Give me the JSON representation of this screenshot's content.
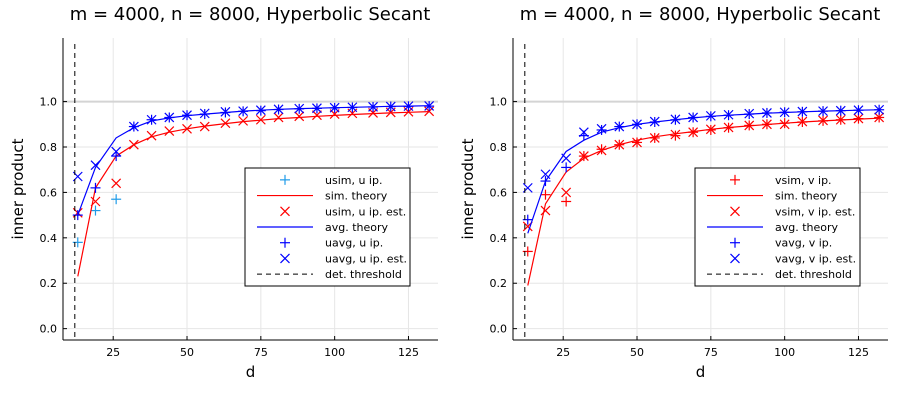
{
  "chart_data": [
    {
      "type": "scatter",
      "title": "m = 4000, n = 8000, Hyperbolic Secant",
      "xlabel": "d",
      "ylabel": "inner product",
      "xlim": [
        8,
        135
      ],
      "ylim": [
        -0.05,
        1.28
      ],
      "xticks": [
        25,
        50,
        75,
        100,
        125
      ],
      "yticks": [
        0.0,
        0.2,
        0.4,
        0.6,
        0.8,
        1.0
      ],
      "xtick_labels": [
        "25",
        "50",
        "75",
        "100",
        "125"
      ],
      "ytick_labels": [
        "0.0",
        "0.2",
        "0.4",
        "0.6",
        "0.8",
        "1.0"
      ],
      "reference_line_y": 1.0,
      "legend_position": "right",
      "series": [
        {
          "name": "usim, u ip.",
          "kind": "marker-plus",
          "color": "#1f9be8",
          "x": [
            13,
            19,
            26
          ],
          "y": [
            0.38,
            0.52,
            0.57
          ]
        },
        {
          "name": "sim. theory",
          "kind": "line",
          "color": "#ff0000",
          "x": [
            13,
            19,
            26,
            32,
            38,
            44,
            50,
            56,
            63,
            69,
            75,
            81,
            88,
            94,
            100,
            106,
            113,
            119,
            125,
            132
          ],
          "y": [
            0.23,
            0.62,
            0.76,
            0.81,
            0.845,
            0.865,
            0.88,
            0.892,
            0.903,
            0.912,
            0.918,
            0.925,
            0.93,
            0.935,
            0.939,
            0.943,
            0.947,
            0.95,
            0.953,
            0.956
          ]
        },
        {
          "name": "usim, u ip. est.",
          "kind": "marker-x",
          "color": "#ff0000",
          "x": [
            13,
            19,
            26,
            32,
            38,
            44,
            50,
            56,
            63,
            69,
            75,
            81,
            88,
            94,
            100,
            106,
            113,
            119,
            125,
            132
          ],
          "y": [
            0.51,
            0.56,
            0.64,
            0.81,
            0.85,
            0.87,
            0.88,
            0.89,
            0.905,
            0.915,
            0.92,
            0.93,
            0.935,
            0.94,
            0.945,
            0.948,
            0.95,
            0.952,
            0.955,
            0.957
          ]
        },
        {
          "name": "avg. theory",
          "kind": "line",
          "color": "#0000ff",
          "x": [
            13,
            19,
            26,
            32,
            38,
            44,
            50,
            56,
            63,
            69,
            75,
            81,
            88,
            94,
            100,
            106,
            113,
            119,
            125,
            132
          ],
          "y": [
            0.5,
            0.71,
            0.84,
            0.885,
            0.915,
            0.928,
            0.938,
            0.945,
            0.952,
            0.958,
            0.962,
            0.966,
            0.969,
            0.971,
            0.973,
            0.975,
            0.977,
            0.979,
            0.98,
            0.982
          ]
        },
        {
          "name": "uavg, u ip.",
          "kind": "marker-plus",
          "color": "#0000ff",
          "x": [
            13,
            19,
            26,
            32,
            38,
            44,
            50,
            56,
            63,
            69,
            75,
            81,
            88,
            94,
            100,
            106,
            113,
            119,
            125,
            132
          ],
          "y": [
            0.5,
            0.62,
            0.76,
            0.89,
            0.92,
            0.93,
            0.94,
            0.945,
            0.952,
            0.957,
            0.96,
            0.965,
            0.968,
            0.97,
            0.972,
            0.974,
            0.976,
            0.978,
            0.979,
            0.98
          ]
        },
        {
          "name": "uavg, u ip. est.",
          "kind": "marker-x",
          "color": "#0000ff",
          "x": [
            13,
            19,
            26,
            32,
            38,
            44,
            50,
            56,
            63,
            69,
            75,
            81,
            88,
            94,
            100,
            106,
            113,
            119,
            125,
            132
          ],
          "y": [
            0.67,
            0.72,
            0.78,
            0.89,
            0.92,
            0.93,
            0.94,
            0.948,
            0.955,
            0.958,
            0.962,
            0.966,
            0.969,
            0.971,
            0.973,
            0.975,
            0.977,
            0.978,
            0.98,
            0.981
          ]
        },
        {
          "name": "det. threshold",
          "kind": "vline-dashed",
          "color": "#000000",
          "x_value": 12
        }
      ]
    },
    {
      "type": "scatter",
      "title": "m = 4000, n = 8000, Hyperbolic Secant",
      "xlabel": "d",
      "ylabel": "inner product",
      "xlim": [
        8,
        135
      ],
      "ylim": [
        -0.05,
        1.28
      ],
      "xticks": [
        25,
        50,
        75,
        100,
        125
      ],
      "yticks": [
        0.0,
        0.2,
        0.4,
        0.6,
        0.8,
        1.0
      ],
      "xtick_labels": [
        "25",
        "50",
        "75",
        "100",
        "125"
      ],
      "ytick_labels": [
        "0.0",
        "0.2",
        "0.4",
        "0.6",
        "0.8",
        "1.0"
      ],
      "reference_line_y": 1.0,
      "legend_position": "right",
      "series": [
        {
          "name": "vsim, v ip.",
          "kind": "marker-plus",
          "color": "#ff0000",
          "x": [
            13,
            19,
            26,
            32,
            38,
            44,
            50,
            56,
            63,
            69,
            75,
            81,
            88,
            94,
            100,
            106,
            113,
            119,
            125,
            132
          ],
          "y": [
            0.34,
            0.59,
            0.56,
            0.76,
            0.79,
            0.81,
            0.82,
            0.84,
            0.85,
            0.865,
            0.875,
            0.885,
            0.895,
            0.9,
            0.905,
            0.91,
            0.915,
            0.92,
            0.925,
            0.93
          ]
        },
        {
          "name": "sim. theory",
          "kind": "line",
          "color": "#ff0000",
          "x": [
            13,
            19,
            26,
            32,
            38,
            44,
            50,
            56,
            63,
            69,
            75,
            81,
            88,
            94,
            100,
            106,
            113,
            119,
            125,
            132
          ],
          "y": [
            0.19,
            0.55,
            0.69,
            0.75,
            0.785,
            0.81,
            0.83,
            0.845,
            0.858,
            0.868,
            0.878,
            0.886,
            0.893,
            0.899,
            0.905,
            0.91,
            0.915,
            0.919,
            0.923,
            0.927
          ]
        },
        {
          "name": "vsim, v ip. est.",
          "kind": "marker-x",
          "color": "#ff0000",
          "x": [
            13,
            19,
            26,
            32,
            38,
            44,
            50,
            56,
            63,
            69,
            75,
            81,
            88,
            94,
            100,
            106,
            113,
            119,
            125,
            132
          ],
          "y": [
            0.45,
            0.52,
            0.6,
            0.76,
            0.785,
            0.81,
            0.82,
            0.84,
            0.855,
            0.865,
            0.878,
            0.886,
            0.895,
            0.9,
            0.9,
            0.912,
            0.917,
            0.92,
            0.925,
            0.93
          ]
        },
        {
          "name": "avg. theory",
          "kind": "line",
          "color": "#0000ff",
          "x": [
            13,
            19,
            26,
            32,
            38,
            44,
            50,
            56,
            63,
            69,
            75,
            81,
            88,
            94,
            100,
            106,
            113,
            119,
            125,
            132
          ],
          "y": [
            0.42,
            0.65,
            0.78,
            0.83,
            0.865,
            0.885,
            0.9,
            0.91,
            0.92,
            0.928,
            0.935,
            0.94,
            0.945,
            0.949,
            0.952,
            0.955,
            0.958,
            0.96,
            0.962,
            0.964
          ]
        },
        {
          "name": "vavg, v ip.",
          "kind": "marker-plus",
          "color": "#0000ff",
          "x": [
            13,
            19,
            26,
            32,
            38,
            44,
            50,
            56,
            63,
            69,
            75,
            81,
            88,
            94,
            100,
            106,
            113,
            119,
            125,
            132
          ],
          "y": [
            0.48,
            0.65,
            0.71,
            0.85,
            0.875,
            0.89,
            0.9,
            0.91,
            0.92,
            0.93,
            0.935,
            0.94,
            0.945,
            0.95,
            0.953,
            0.955,
            0.958,
            0.96,
            0.962,
            0.964
          ]
        },
        {
          "name": "vavg, v ip. est.",
          "kind": "marker-x",
          "color": "#0000ff",
          "x": [
            13,
            19,
            26,
            32,
            38,
            44,
            50,
            56,
            63,
            69,
            75,
            81,
            88,
            94,
            100,
            106,
            113,
            119,
            125,
            132
          ],
          "y": [
            0.62,
            0.68,
            0.75,
            0.865,
            0.88,
            0.89,
            0.9,
            0.912,
            0.922,
            0.93,
            0.937,
            0.942,
            0.947,
            0.95,
            0.953,
            0.956,
            0.958,
            0.96,
            0.962,
            0.964
          ]
        },
        {
          "name": "det. threshold",
          "kind": "vline-dashed",
          "color": "#000000",
          "x_value": 12
        }
      ]
    }
  ]
}
